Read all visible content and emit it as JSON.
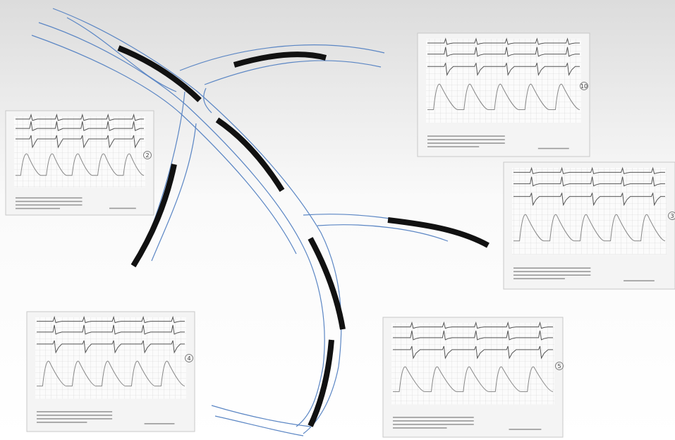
{
  "panels": [
    {
      "label": "10"
    },
    {
      "label": "2"
    },
    {
      "label": "3"
    },
    {
      "label": "4"
    },
    {
      "label": "5"
    }
  ]
}
